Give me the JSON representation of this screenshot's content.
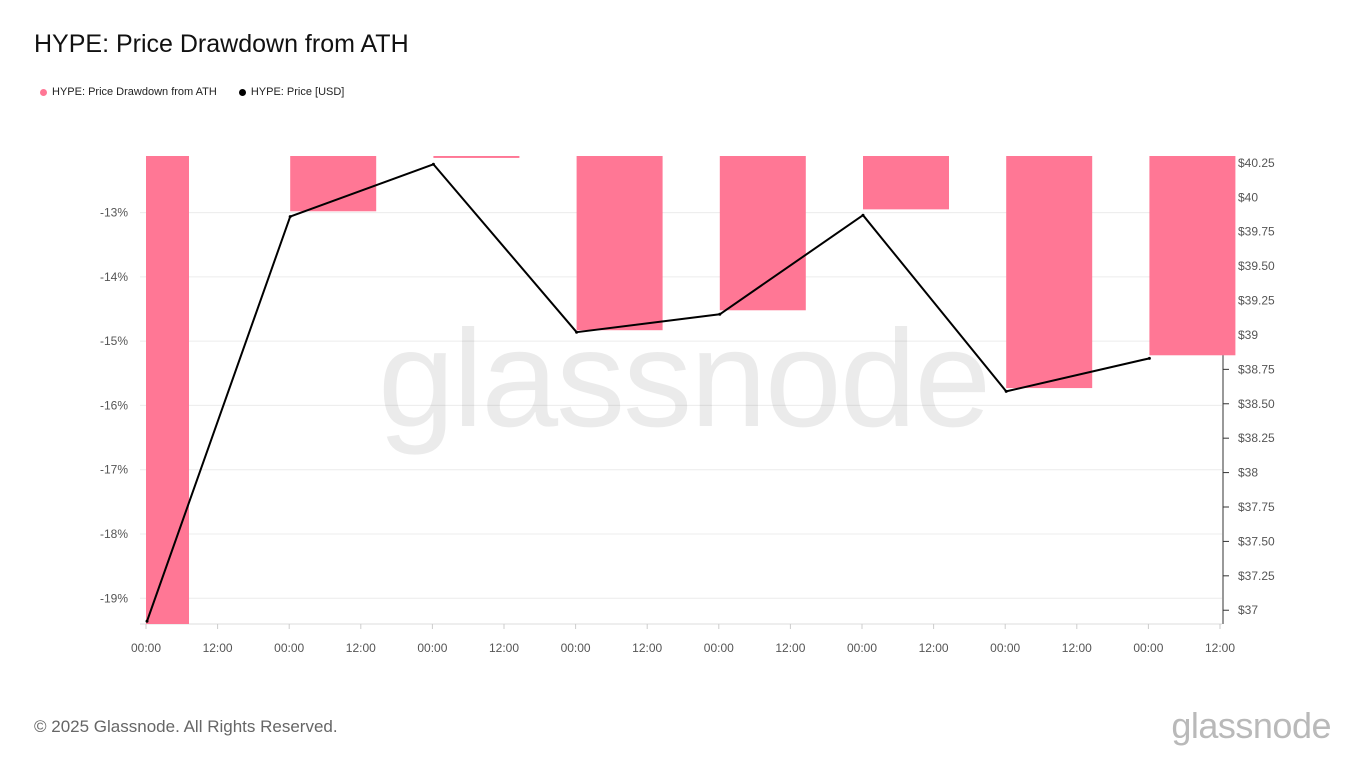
{
  "title": "HYPE: Price Drawdown from ATH",
  "legend": [
    {
      "label": "HYPE: Price Drawdown from ATH",
      "color": "#ff7795"
    },
    {
      "label": "HYPE: Price [USD]",
      "color": "#000000"
    }
  ],
  "footer": {
    "copyright": "© 2025 Glassnode. All Rights Reserved.",
    "logo": "glassnode"
  },
  "watermark": "glassnode",
  "chart_data": {
    "type": "bar+line",
    "x_labels": [
      "00:00",
      "12:00",
      "00:00",
      "12:00",
      "00:00",
      "12:00",
      "00:00",
      "12:00",
      "00:00",
      "12:00",
      "00:00",
      "12:00",
      "00:00",
      "12:00",
      "00:00",
      "12:00"
    ],
    "left_axis": {
      "ticks": [
        "-13%",
        "-14%",
        "-15%",
        "-16%",
        "-17%",
        "-18%",
        "-19%"
      ],
      "tick_values": [
        -13,
        -14,
        -15,
        -16,
        -17,
        -18,
        -19
      ],
      "range": [
        -19.4,
        -12.12
      ]
    },
    "right_axis": {
      "ticks": [
        "$40.25",
        "$40",
        "$39.75",
        "$39.50",
        "$39.25",
        "$39",
        "$38.75",
        "$38.50",
        "$38.25",
        "$38",
        "$37.75",
        "$37.50",
        "$37.25",
        "$37"
      ],
      "tick_values": [
        40.25,
        40,
        39.75,
        39.5,
        39.25,
        39,
        38.75,
        38.5,
        38.25,
        38,
        37.75,
        37.5,
        37.25,
        37
      ],
      "range": [
        36.9,
        40.3
      ]
    },
    "series": [
      {
        "name": "HYPE: Price Drawdown from ATH",
        "kind": "bar",
        "color": "#ff7795",
        "x_index": [
          0,
          2,
          4,
          6,
          8,
          10,
          12,
          14
        ],
        "values": [
          -19.4,
          -12.98,
          -12.15,
          -14.83,
          -14.52,
          -12.95,
          -15.73,
          -15.22
        ]
      },
      {
        "name": "HYPE: Price [USD]",
        "kind": "line",
        "color": "#000000",
        "x_index": [
          0,
          2,
          4,
          6,
          8,
          10,
          12,
          14
        ],
        "values": [
          36.92,
          39.86,
          40.24,
          39.02,
          39.15,
          39.87,
          38.59,
          38.83
        ]
      }
    ],
    "grid": true,
    "legend_position": "top-left"
  }
}
